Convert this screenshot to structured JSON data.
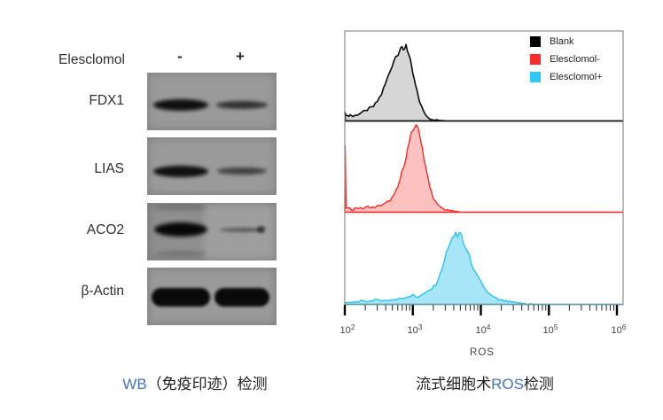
{
  "figure": {
    "wb_panel": {
      "header": {
        "label": "Elesclomol",
        "minus": "-",
        "plus": "+"
      },
      "rows": [
        {
          "label": "FDX1",
          "bands": {
            "minus": "strong",
            "plus": "medium"
          }
        },
        {
          "label": "LIAS",
          "bands": {
            "minus": "strong",
            "plus": "medium-weak"
          }
        },
        {
          "label": "ACO2",
          "bands": {
            "minus": "very-strong",
            "plus": "weak"
          },
          "smears": true
        },
        {
          "label": "β-Actin",
          "bands": {
            "minus": "strong",
            "plus": "strong"
          },
          "thick": true
        }
      ],
      "caption": {
        "keyword": "WB",
        "rest": "（免疫印迹）检测",
        "keyword_color": "#4472c4"
      }
    },
    "facs_panel": {
      "legend": [
        {
          "label": "Blank",
          "color": "#000000"
        },
        {
          "label": "Elesclomol-",
          "color": "#fb2b2b"
        },
        {
          "label": "Elesclomol+",
          "color": "#2ec9f6"
        }
      ],
      "xlabel": "ROS",
      "ticks": [
        {
          "base": "10",
          "exp": "2"
        },
        {
          "base": "10",
          "exp": "3"
        },
        {
          "base": "10",
          "exp": "4"
        },
        {
          "base": "10",
          "exp": "5"
        },
        {
          "base": "10",
          "exp": "6"
        }
      ],
      "caption": {
        "prefix": "流式细胞术",
        "keyword": "ROS",
        "suffix": "检测",
        "keyword_color": "#4472c4"
      }
    }
  },
  "chart_data": {
    "type": "area",
    "subtype": "flow-cytometry-stacked-histograms",
    "title": "",
    "xlabel": "ROS",
    "xscale": "log10",
    "xlim": [
      100,
      1000000
    ],
    "xticks": [
      100,
      1000,
      10000,
      100000,
      1000000
    ],
    "grid": false,
    "legend_position": "top-right",
    "panels": [
      {
        "series": "Blank",
        "stroke": "#0a0a0a",
        "fill": "#d6d6d6",
        "peak_x_approx": 800,
        "points": [
          [
            2.0,
            0.1
          ],
          [
            2.04,
            0.05
          ],
          [
            2.08,
            0.07
          ],
          [
            2.12,
            0.05
          ],
          [
            2.18,
            0.07
          ],
          [
            2.24,
            0.09
          ],
          [
            2.3,
            0.11
          ],
          [
            2.36,
            0.14
          ],
          [
            2.42,
            0.16
          ],
          [
            2.48,
            0.22
          ],
          [
            2.54,
            0.3
          ],
          [
            2.6,
            0.42
          ],
          [
            2.66,
            0.55
          ],
          [
            2.72,
            0.68
          ],
          [
            2.78,
            0.76
          ],
          [
            2.82,
            0.82
          ],
          [
            2.86,
            0.78
          ],
          [
            2.9,
            0.86
          ],
          [
            2.94,
            0.74
          ],
          [
            2.98,
            0.6
          ],
          [
            3.02,
            0.46
          ],
          [
            3.06,
            0.33
          ],
          [
            3.1,
            0.22
          ],
          [
            3.16,
            0.1
          ],
          [
            3.22,
            0.04
          ],
          [
            3.3,
            0.015
          ],
          [
            3.4,
            0.005
          ],
          [
            3.5,
            0.0
          ],
          [
            6.0,
            0.0
          ]
        ]
      },
      {
        "series": "Elesclomol-",
        "stroke": "#fb2b2b",
        "fill": "rgba(250,70,60,0.33)",
        "peak_x_approx": 1100,
        "points": [
          [
            2.0,
            0.0
          ],
          [
            2.005,
            0.7
          ],
          [
            2.02,
            0.05
          ],
          [
            2.1,
            0.03
          ],
          [
            2.18,
            0.05
          ],
          [
            2.26,
            0.04
          ],
          [
            2.34,
            0.06
          ],
          [
            2.42,
            0.05
          ],
          [
            2.5,
            0.07
          ],
          [
            2.58,
            0.09
          ],
          [
            2.66,
            0.13
          ],
          [
            2.72,
            0.18
          ],
          [
            2.78,
            0.28
          ],
          [
            2.84,
            0.44
          ],
          [
            2.9,
            0.62
          ],
          [
            2.94,
            0.75
          ],
          [
            2.98,
            0.86
          ],
          [
            3.02,
            0.94
          ],
          [
            3.05,
            0.98
          ],
          [
            3.08,
            0.9
          ],
          [
            3.12,
            0.8
          ],
          [
            3.16,
            0.62
          ],
          [
            3.2,
            0.45
          ],
          [
            3.25,
            0.28
          ],
          [
            3.3,
            0.16
          ],
          [
            3.36,
            0.08
          ],
          [
            3.44,
            0.04
          ],
          [
            3.52,
            0.02
          ],
          [
            3.6,
            0.01
          ],
          [
            3.7,
            0.0
          ],
          [
            6.0,
            0.0
          ]
        ]
      },
      {
        "series": "Elesclomol+",
        "stroke": "#27c4ee",
        "fill": "rgba(60,200,240,0.45)",
        "peak_x_approx": 5200,
        "points": [
          [
            2.0,
            0.015
          ],
          [
            2.1,
            0.02
          ],
          [
            2.2,
            0.03
          ],
          [
            2.3,
            0.035
          ],
          [
            2.4,
            0.04
          ],
          [
            2.5,
            0.05
          ],
          [
            2.6,
            0.04
          ],
          [
            2.7,
            0.05
          ],
          [
            2.8,
            0.06
          ],
          [
            2.9,
            0.08
          ],
          [
            3.0,
            0.1
          ],
          [
            3.06,
            0.08
          ],
          [
            3.12,
            0.1
          ],
          [
            3.2,
            0.13
          ],
          [
            3.28,
            0.17
          ],
          [
            3.34,
            0.22
          ],
          [
            3.4,
            0.32
          ],
          [
            3.46,
            0.48
          ],
          [
            3.52,
            0.62
          ],
          [
            3.58,
            0.72
          ],
          [
            3.63,
            0.8
          ],
          [
            3.66,
            0.72
          ],
          [
            3.7,
            0.79
          ],
          [
            3.74,
            0.68
          ],
          [
            3.8,
            0.58
          ],
          [
            3.86,
            0.46
          ],
          [
            3.92,
            0.34
          ],
          [
            4.0,
            0.24
          ],
          [
            4.08,
            0.15
          ],
          [
            4.16,
            0.09
          ],
          [
            4.26,
            0.05
          ],
          [
            4.4,
            0.03
          ],
          [
            4.55,
            0.015
          ],
          [
            4.7,
            0.005
          ],
          [
            4.9,
            0.0
          ],
          [
            6.0,
            0.0
          ]
        ]
      }
    ]
  }
}
